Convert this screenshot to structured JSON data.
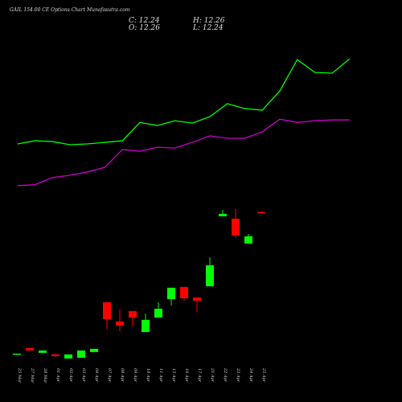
{
  "chart_data": {
    "type": "candlestick",
    "title": "GAIL 154.00 CE Options Chart Munafasutra.com",
    "info": [
      "C: 12.24",
      "O: 12.26",
      "H: 12.26",
      "L: 12.24"
    ],
    "categories": [
      "25 Mar",
      "27 Mar",
      "28 Mar",
      "01 Apr",
      "02 Apr",
      "03 Apr",
      "04 Apr",
      "07 Apr",
      "08 Apr",
      "09 Apr",
      "10 Apr",
      "11 Apr",
      "15 Apr",
      "16 Apr",
      "17 Apr",
      "21 Apr",
      "22 Apr",
      "23 Apr",
      "24 Apr",
      "25 Apr"
    ],
    "open": [
      1.45,
      1.93,
      1.57,
      1.45,
      1.14,
      1.2,
      1.63,
      5.41,
      3.95,
      4.74,
      3.15,
      4.25,
      5.65,
      6.57,
      5.77,
      6.62,
      11.93,
      11.75,
      9.86,
      12.26
    ],
    "high": [
      1.51,
      1.93,
      1.75,
      1.51,
      1.45,
      1.75,
      1.87,
      5.41,
      4.86,
      4.74,
      4.55,
      5.41,
      6.51,
      6.57,
      5.77,
      8.82,
      12.42,
      12.48,
      10.59,
      12.26
    ],
    "low": [
      1.45,
      1.75,
      1.57,
      1.26,
      1.14,
      1.2,
      1.63,
      3.34,
      3.21,
      3.58,
      3.15,
      4.25,
      5.16,
      5.53,
      4.68,
      6.62,
      11.93,
      10.29,
      9.86,
      12.24
    ],
    "close": [
      1.51,
      1.75,
      1.75,
      1.32,
      1.45,
      1.75,
      1.87,
      4.13,
      3.64,
      4.25,
      4.07,
      4.92,
      6.51,
      5.71,
      5.53,
      8.21,
      12.12,
      10.47,
      10.41,
      12.24
    ],
    "up_color": "#00ff00",
    "down_color": "#ff0000",
    "series": [
      {
        "color": "#00ff00",
        "values": [
          17.42,
          17.66,
          17.6,
          17.36,
          17.42,
          17.54,
          17.66,
          19.05,
          18.82,
          19.18,
          19.0,
          19.49,
          20.47,
          20.1,
          19.98,
          21.44,
          23.82,
          22.85,
          22.79,
          23.88
        ]
      },
      {
        "color": "#cc00cc",
        "values": [
          14.26,
          14.32,
          14.87,
          15.04,
          15.29,
          15.65,
          16.99,
          16.87,
          17.17,
          17.11,
          17.54,
          18.03,
          17.85,
          17.85,
          18.34,
          19.3,
          19.05,
          19.18,
          19.24,
          19.24
        ]
      }
    ],
    "ylim": [
      -2.16,
      28.34
    ]
  }
}
